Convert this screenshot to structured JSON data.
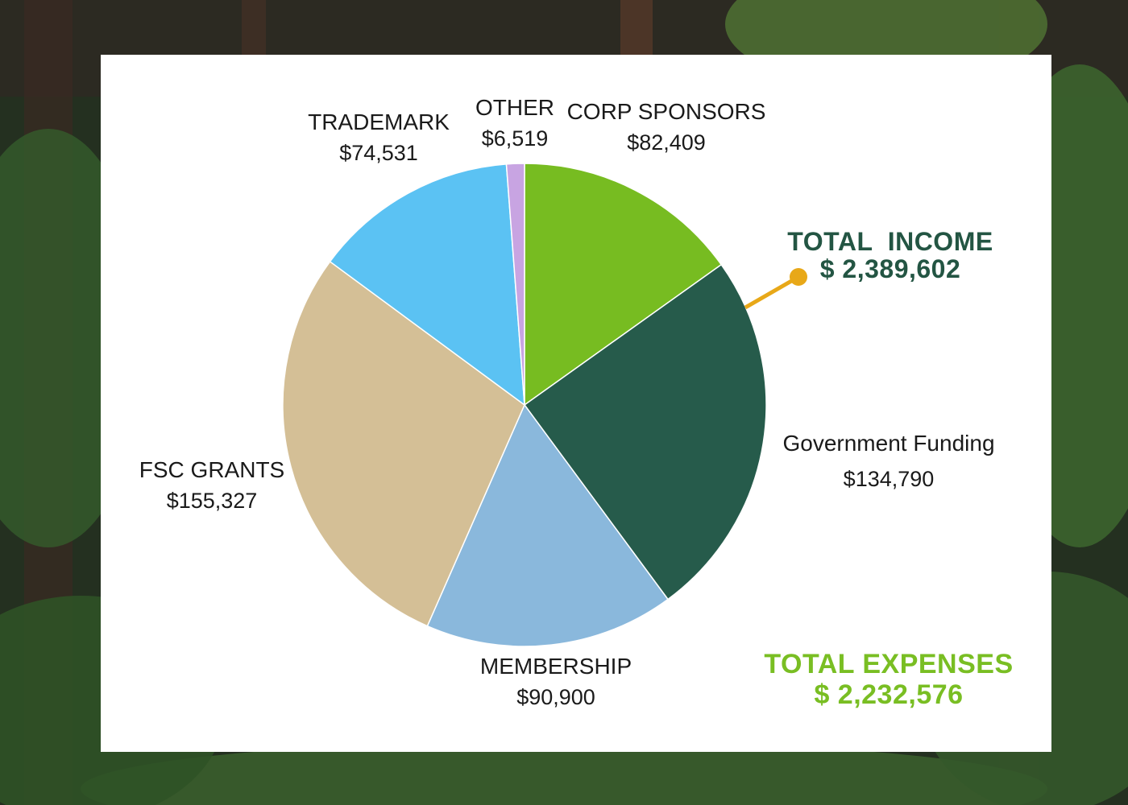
{
  "colors": {
    "corp_sponsors": "#77bc21",
    "government_funding": "#265b4b",
    "membership": "#8ab8dc",
    "fsc_grants": "#d4bf96",
    "trademark": "#5bc2f3",
    "other": "#c8a4e2",
    "income_text": "#235543",
    "expense_text": "#79be23",
    "pointer": "#e8a818"
  },
  "chart_data": {
    "type": "pie",
    "slices": [
      {
        "key": "corp_sponsors",
        "label": "CORP SPONSORS",
        "value": 82409,
        "display": "$82,409"
      },
      {
        "key": "government_funding",
        "label": "Government Funding",
        "value": 134790,
        "display": "$134,790"
      },
      {
        "key": "membership",
        "label": "MEMBERSHIP",
        "value": 90900,
        "display": "$90,900"
      },
      {
        "key": "fsc_grants",
        "label": "FSC GRANTS",
        "value": 155327,
        "display": "$155,327"
      },
      {
        "key": "trademark",
        "label": "TRADEMARK",
        "value": 74531,
        "display": "$74,531"
      },
      {
        "key": "other",
        "label": "OTHER",
        "value": 6519,
        "display": "$6,519"
      }
    ]
  },
  "totals": {
    "income_label": "TOTAL  INCOME",
    "income_value": "$ 2,389,602",
    "expense_label": "TOTAL EXPENSES",
    "expense_value": "$ 2,232,576"
  }
}
